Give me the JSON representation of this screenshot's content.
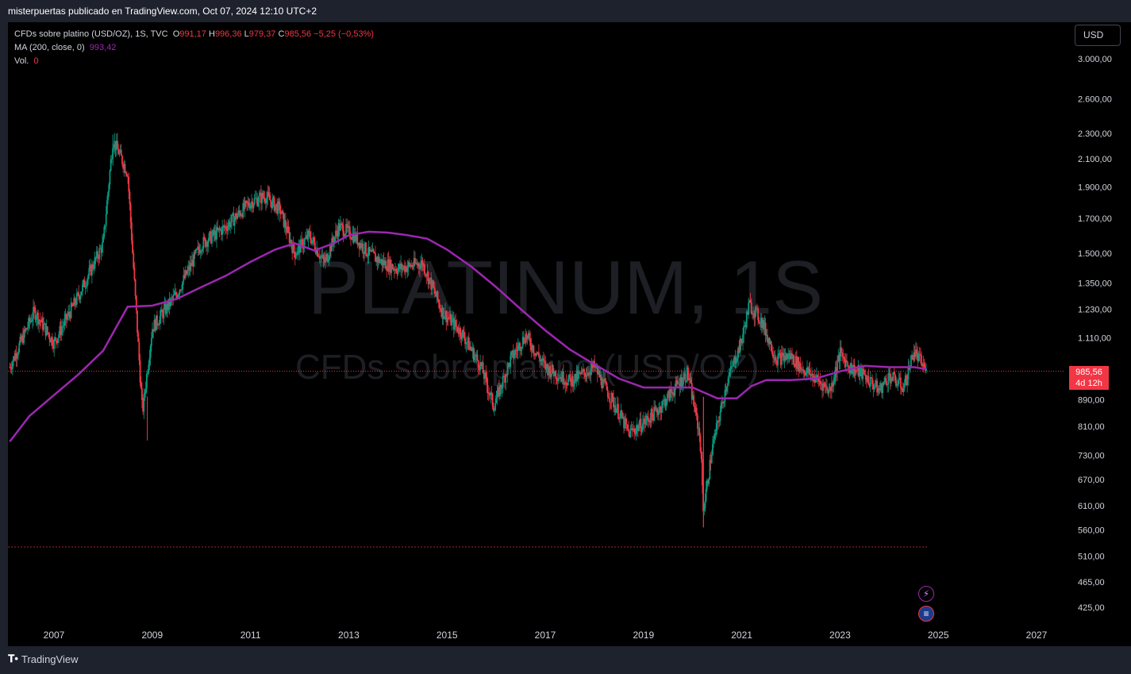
{
  "header": {
    "published": "misterpuertas publicado en TradingView.com, Oct 07, 2024 12:10 UTC+2"
  },
  "legend": {
    "symbol": "CFDs sobre platino (USD/OZ), 1S, TVC",
    "o_label": "O",
    "o_value": "991,17",
    "h_label": "H",
    "h_value": "996,36",
    "l_label": "L",
    "l_value": "979,37",
    "c_label": "C",
    "c_value": "985,56",
    "change": "−5,25 (−0,53%)",
    "ma_label": "MA (200, close, 0)",
    "ma_value": "993,42",
    "vol_label": "Vol.",
    "vol_value": "0"
  },
  "currency_button": "USD",
  "price_tag": {
    "price": "985,56",
    "countdown": "4d 12h"
  },
  "watermark": {
    "title": "PLATINUM, 1S",
    "subtitle": "CFDs sobre platino (USD/OZ)"
  },
  "footer": {
    "brand": "TradingView"
  },
  "colors": {
    "up": "#089981",
    "down": "#f23645",
    "ma": "#9c27b0",
    "background": "#000000"
  },
  "icons": [
    "lightning-icon",
    "us-flag-icon"
  ],
  "chart_data": {
    "type": "line",
    "series": [
      {
        "x": [
          2006.1,
          2006.6,
          2007.0,
          2007.5,
          2008.0,
          2008.2,
          2008.5,
          2008.8,
          2009.0,
          2009.5,
          2010.0,
          2010.5,
          2011.0,
          2011.3,
          2011.6,
          2011.9,
          2012.2,
          2012.5,
          2012.8,
          2013.1,
          2013.4,
          2013.7,
          2014.0,
          2014.5,
          2014.9,
          2015.3,
          2015.7,
          2015.95,
          2016.3,
          2016.6,
          2017.0,
          2017.5,
          2018.0,
          2018.5,
          2018.7,
          2019.0,
          2019.3,
          2019.6,
          2019.9,
          2020.15,
          2020.22,
          2020.4,
          2020.7,
          2021.0,
          2021.15,
          2021.4,
          2021.7,
          2022.0,
          2022.2,
          2022.5,
          2022.8,
          2023.0,
          2023.2,
          2023.5,
          2023.8,
          2024.0,
          2024.3,
          2024.5,
          2024.76
        ],
        "values": [
          1000,
          1220,
          1090,
          1290,
          1550,
          2250,
          2000,
          850,
          1150,
          1300,
          1550,
          1650,
          1800,
          1840,
          1750,
          1500,
          1600,
          1450,
          1650,
          1600,
          1500,
          1450,
          1420,
          1450,
          1220,
          1130,
          1000,
          870,
          1030,
          1120,
          1000,
          950,
          1000,
          850,
          790,
          820,
          860,
          920,
          980,
          780,
          600,
          750,
          950,
          1100,
          1250,
          1180,
          1030,
          1040,
          1000,
          960,
          920,
          1050,
          1000,
          970,
          920,
          970,
          930,
          1060,
          985.56
        ]
      },
      {
        "name": "MA (200, close, 0)",
        "x": [
          2006.1,
          2006.5,
          2007.0,
          2007.5,
          2008.0,
          2008.5,
          2009.0,
          2009.5,
          2010.0,
          2010.5,
          2011.0,
          2011.5,
          2011.9,
          2012.3,
          2012.7,
          2013.0,
          2013.4,
          2013.8,
          2014.2,
          2014.6,
          2015.0,
          2015.5,
          2016.0,
          2016.5,
          2017.0,
          2017.5,
          2018.0,
          2018.5,
          2019.0,
          2019.5,
          2020.0,
          2020.5,
          2020.9,
          2021.2,
          2021.5,
          2022.0,
          2022.5,
          2023.0,
          2023.5,
          2024.0,
          2024.5,
          2024.76
        ],
        "values": [
          767,
          840,
          905,
          975,
          1060,
          1240,
          1245,
          1275,
          1330,
          1385,
          1455,
          1520,
          1555,
          1515,
          1555,
          1600,
          1620,
          1615,
          1600,
          1580,
          1520,
          1430,
          1330,
          1230,
          1140,
          1065,
          1010,
          960,
          930,
          930,
          930,
          895,
          895,
          935,
          955,
          955,
          960,
          985,
          1005,
          1000,
          1000,
          993.42
        ]
      }
    ],
    "y_scale": "log",
    "ylim": [
      400,
      3200
    ],
    "xlim": [
      2006.1,
      2028.0
    ],
    "y_ticks": [
      "3.000,00",
      "2.600,00",
      "2.300,00",
      "2.100,00",
      "1.900,00",
      "1.700,00",
      "1.500,00",
      "1.350,00",
      "1.230,00",
      "1.110,00",
      "890,00",
      "810,00",
      "730,00",
      "670,00",
      "610,00",
      "560,00",
      "510,00",
      "465,00",
      "425,00"
    ],
    "y_tick_values": [
      3000,
      2600,
      2300,
      2100,
      1900,
      1700,
      1500,
      1350,
      1230,
      1110,
      890,
      810,
      730,
      670,
      610,
      560,
      510,
      465,
      425
    ],
    "x_ticks": [
      "2007",
      "2009",
      "2011",
      "2013",
      "2015",
      "2017",
      "2019",
      "2021",
      "2023",
      "2025",
      "2027"
    ],
    "x_tick_values": [
      2007,
      2009,
      2011,
      2013,
      2015,
      2017,
      2019,
      2021,
      2023,
      2025,
      2027
    ],
    "reference_lines": [
      985.56,
      527
    ],
    "grid": false
  }
}
